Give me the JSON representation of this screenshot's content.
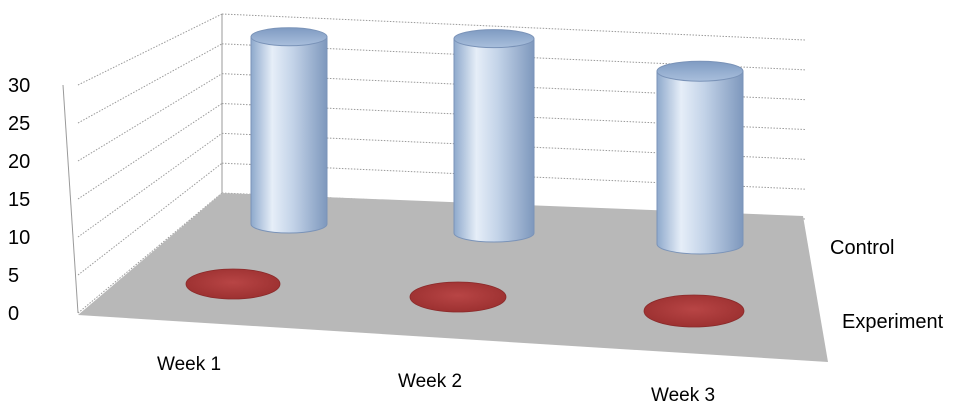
{
  "chart_data": {
    "type": "bar",
    "style": "3d-cylinder",
    "categories": [
      "Week 1",
      "Week 2",
      "Week 3"
    ],
    "series": [
      {
        "name": "Control",
        "values": [
          26,
          27,
          24
        ],
        "color": "#b9cde6"
      },
      {
        "name": "Experiment",
        "values": [
          0,
          0,
          0
        ],
        "color": "#b03a3a"
      }
    ],
    "ylim": [
      0,
      30
    ],
    "yticks": [
      "0",
      "5",
      "10",
      "15",
      "20",
      "25",
      "30"
    ],
    "grid": true,
    "floor_color": "#b8b8b8",
    "title": "",
    "xlabel": "",
    "ylabel": ""
  }
}
